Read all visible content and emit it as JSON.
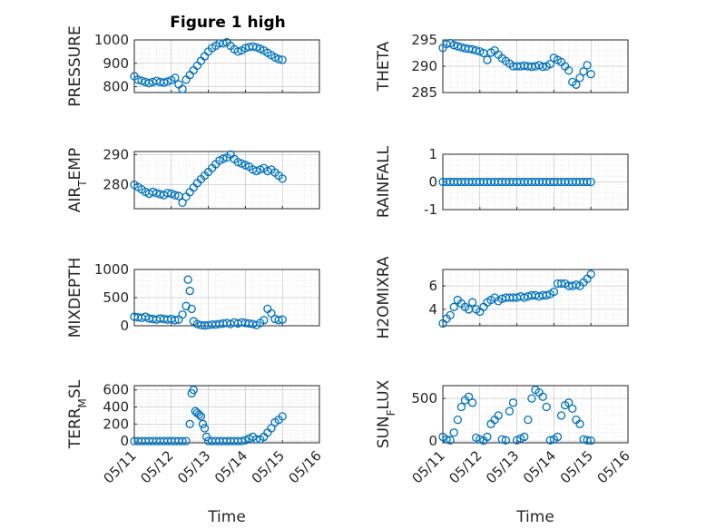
{
  "figure": {
    "title": "Figure 1 high"
  },
  "colors": {
    "marker": "#0072BD",
    "axis": "#262626",
    "background": "#ffffff"
  },
  "chart_data": [
    {
      "type": "scatter",
      "title": "Figure 1 high",
      "ylabel": "PRESSURE",
      "xlabel": "",
      "ylim": [
        775,
        1000
      ],
      "yticks": [
        800,
        900,
        1000
      ],
      "xlim": [
        0,
        5
      ],
      "xticks": [
        0,
        1,
        2,
        3,
        4,
        5
      ],
      "xticklabels": [
        "",
        "",
        "",
        "",
        "",
        ""
      ],
      "grid": true,
      "minor_grid": true,
      "marker": "circle",
      "x": [
        0,
        0.1,
        0.2,
        0.3,
        0.4,
        0.5,
        0.6,
        0.7,
        0.8,
        0.9,
        1.0,
        1.1,
        1.2,
        1.3,
        1.4,
        1.5,
        1.6,
        1.7,
        1.8,
        1.9,
        2.0,
        2.1,
        2.2,
        2.3,
        2.4,
        2.5,
        2.6,
        2.7,
        2.8,
        2.9,
        3.0,
        3.1,
        3.2,
        3.3,
        3.4,
        3.5,
        3.6,
        3.7,
        3.8,
        3.9,
        4.0
      ],
      "y": [
        845,
        830,
        825,
        820,
        815,
        820,
        825,
        820,
        818,
        822,
        828,
        838,
        810,
        790,
        830,
        850,
        870,
        890,
        910,
        930,
        950,
        965,
        975,
        985,
        985,
        990,
        975,
        960,
        950,
        955,
        965,
        970,
        972,
        968,
        962,
        955,
        945,
        935,
        925,
        918,
        915
      ]
    },
    {
      "type": "scatter",
      "ylabel": "THETA",
      "xlabel": "",
      "ylim": [
        285,
        295
      ],
      "yticks": [
        285,
        290,
        295
      ],
      "xlim": [
        0,
        5
      ],
      "xticks": [
        0,
        1,
        2,
        3,
        4,
        5
      ],
      "xticklabels": [
        "",
        "",
        "",
        "",
        "",
        ""
      ],
      "grid": true,
      "minor_grid": true,
      "marker": "circle",
      "x": [
        0,
        0.1,
        0.2,
        0.3,
        0.4,
        0.5,
        0.6,
        0.7,
        0.8,
        0.9,
        1.0,
        1.1,
        1.2,
        1.3,
        1.4,
        1.5,
        1.6,
        1.7,
        1.8,
        1.9,
        2.0,
        2.1,
        2.2,
        2.3,
        2.4,
        2.5,
        2.6,
        2.7,
        2.8,
        2.9,
        3.0,
        3.1,
        3.2,
        3.3,
        3.4,
        3.5,
        3.6,
        3.7,
        3.8,
        3.9,
        4.0
      ],
      "y": [
        293.5,
        294.2,
        294.4,
        294.0,
        293.8,
        293.6,
        293.4,
        293.3,
        293.2,
        293.0,
        292.8,
        292.5,
        291.2,
        292.6,
        293.0,
        292.2,
        291.5,
        291.0,
        290.5,
        290.0,
        290.0,
        290.0,
        290.1,
        290.0,
        289.9,
        290.0,
        290.2,
        289.9,
        290.0,
        290.4,
        291.6,
        291.2,
        290.8,
        290.0,
        289.2,
        287.0,
        286.5,
        287.8,
        289.0,
        290.2,
        288.5
      ]
    },
    {
      "type": "scatter",
      "ylabel": "AIR_TEMP",
      "xlabel": "",
      "ylim": [
        272,
        291
      ],
      "yticks": [
        280,
        290
      ],
      "xlim": [
        0,
        5
      ],
      "xticks": [
        0,
        1,
        2,
        3,
        4,
        5
      ],
      "xticklabels": [
        "",
        "",
        "",
        "",
        "",
        ""
      ],
      "grid": true,
      "minor_grid": true,
      "marker": "circle",
      "x": [
        0,
        0.1,
        0.2,
        0.3,
        0.4,
        0.5,
        0.6,
        0.7,
        0.8,
        0.9,
        1.0,
        1.1,
        1.2,
        1.3,
        1.4,
        1.5,
        1.6,
        1.7,
        1.8,
        1.9,
        2.0,
        2.1,
        2.2,
        2.3,
        2.4,
        2.5,
        2.6,
        2.7,
        2.8,
        2.9,
        3.0,
        3.1,
        3.2,
        3.3,
        3.4,
        3.5,
        3.6,
        3.7,
        3.8,
        3.9,
        4.0
      ],
      "y": [
        280.0,
        279.2,
        278.4,
        277.6,
        277.0,
        277.6,
        277.2,
        276.8,
        276.5,
        277.2,
        277.0,
        276.5,
        276.2,
        274.0,
        276.0,
        277.5,
        279.0,
        280.5,
        281.8,
        283.0,
        284.2,
        285.5,
        286.8,
        288.0,
        288.6,
        289.0,
        290.0,
        288.5,
        287.5,
        287.0,
        286.5,
        286.0,
        285.0,
        284.5,
        285.0,
        285.5,
        284.5,
        285.0,
        284.0,
        283.0,
        282.0
      ]
    },
    {
      "type": "scatter",
      "ylabel": "RAINFALL",
      "xlabel": "",
      "ylim": [
        -1,
        1
      ],
      "yticks": [
        -1,
        0,
        1
      ],
      "xlim": [
        0,
        5
      ],
      "xticks": [
        0,
        1,
        2,
        3,
        4,
        5
      ],
      "xticklabels": [
        "",
        "",
        "",
        "",
        "",
        ""
      ],
      "grid": true,
      "minor_grid": true,
      "marker": "circle",
      "x": [
        0,
        0.1,
        0.2,
        0.3,
        0.4,
        0.5,
        0.6,
        0.7,
        0.8,
        0.9,
        1.0,
        1.1,
        1.2,
        1.3,
        1.4,
        1.5,
        1.6,
        1.7,
        1.8,
        1.9,
        2.0,
        2.1,
        2.2,
        2.3,
        2.4,
        2.5,
        2.6,
        2.7,
        2.8,
        2.9,
        3.0,
        3.1,
        3.2,
        3.3,
        3.4,
        3.5,
        3.6,
        3.7,
        3.8,
        3.9,
        4.0
      ],
      "y": [
        0,
        0,
        0,
        0,
        0,
        0,
        0,
        0,
        0,
        0,
        0,
        0,
        0,
        0,
        0,
        0,
        0,
        0,
        0,
        0,
        0,
        0,
        0,
        0,
        0,
        0,
        0,
        0,
        0,
        0,
        0,
        0,
        0,
        0,
        0,
        0,
        0,
        0,
        0,
        0,
        0
      ]
    },
    {
      "type": "scatter",
      "ylabel": "MIXDEPTH",
      "xlabel": "",
      "ylim": [
        0,
        1000
      ],
      "yticks": [
        0,
        500,
        1000
      ],
      "xlim": [
        0,
        5
      ],
      "xticks": [
        0,
        1,
        2,
        3,
        4,
        5
      ],
      "xticklabels": [
        "",
        "",
        "",
        "",
        "",
        ""
      ],
      "grid": true,
      "minor_grid": true,
      "marker": "circle",
      "x": [
        0,
        0.1,
        0.2,
        0.3,
        0.4,
        0.5,
        0.6,
        0.7,
        0.8,
        0.9,
        1.0,
        1.1,
        1.2,
        1.3,
        1.4,
        1.45,
        1.5,
        1.55,
        1.6,
        1.7,
        1.8,
        1.9,
        2.0,
        2.1,
        2.2,
        2.3,
        2.4,
        2.5,
        2.6,
        2.7,
        2.8,
        2.9,
        3.0,
        3.1,
        3.2,
        3.3,
        3.4,
        3.5,
        3.6,
        3.7,
        3.8,
        3.9,
        4.0
      ],
      "y": [
        160,
        150,
        140,
        160,
        130,
        120,
        110,
        130,
        120,
        110,
        120,
        100,
        110,
        200,
        350,
        820,
        620,
        300,
        80,
        30,
        10,
        5,
        10,
        20,
        20,
        30,
        40,
        50,
        30,
        60,
        40,
        60,
        50,
        40,
        30,
        10,
        50,
        100,
        300,
        220,
        120,
        100,
        110
      ]
    },
    {
      "type": "scatter",
      "ylabel": "H2OMIXRA",
      "xlabel": "",
      "ylim": [
        2.6,
        7.4
      ],
      "yticks": [
        4,
        6
      ],
      "xlim": [
        0,
        5
      ],
      "xticks": [
        0,
        1,
        2,
        3,
        4,
        5
      ],
      "xticklabels": [
        "",
        "",
        "",
        "",
        "",
        ""
      ],
      "grid": true,
      "minor_grid": true,
      "marker": "circle",
      "x": [
        0,
        0.1,
        0.2,
        0.3,
        0.4,
        0.5,
        0.6,
        0.7,
        0.8,
        0.9,
        1.0,
        1.1,
        1.2,
        1.3,
        1.4,
        1.5,
        1.6,
        1.7,
        1.8,
        1.9,
        2.0,
        2.1,
        2.2,
        2.3,
        2.4,
        2.5,
        2.6,
        2.7,
        2.8,
        2.9,
        3.0,
        3.1,
        3.2,
        3.3,
        3.4,
        3.5,
        3.6,
        3.7,
        3.8,
        3.9,
        4.0
      ],
      "y": [
        2.8,
        3.2,
        3.5,
        4.2,
        4.8,
        4.5,
        4.2,
        4.0,
        4.6,
        4.0,
        3.8,
        4.2,
        4.6,
        4.8,
        5.0,
        4.7,
        4.9,
        5.0,
        5.0,
        5.0,
        5.0,
        5.1,
        5.0,
        5.1,
        5.2,
        5.2,
        5.1,
        5.2,
        5.2,
        5.3,
        5.5,
        6.2,
        6.2,
        6.2,
        6.0,
        6.0,
        6.1,
        6.0,
        6.3,
        6.6,
        7.0
      ]
    },
    {
      "type": "scatter",
      "ylabel": "TERR_MSL",
      "xlabel": "Time",
      "ylim": [
        -20,
        650
      ],
      "yticks": [
        0,
        200,
        400,
        600
      ],
      "xlim": [
        0,
        5
      ],
      "xticks": [
        0,
        1,
        2,
        3,
        4,
        5
      ],
      "xticklabels": [
        "05/11",
        "05/12",
        "05/13",
        "05/14",
        "05/15",
        "05/16"
      ],
      "grid": true,
      "minor_grid": true,
      "marker": "circle",
      "x": [
        0,
        0.1,
        0.2,
        0.3,
        0.4,
        0.5,
        0.6,
        0.7,
        0.8,
        0.9,
        1.0,
        1.1,
        1.2,
        1.3,
        1.4,
        1.5,
        1.55,
        1.6,
        1.65,
        1.7,
        1.75,
        1.8,
        1.85,
        1.9,
        1.95,
        2.0,
        2.1,
        2.2,
        2.3,
        2.4,
        2.5,
        2.6,
        2.7,
        2.8,
        2.9,
        3.0,
        3.1,
        3.2,
        3.3,
        3.4,
        3.5,
        3.6,
        3.7,
        3.8,
        3.9,
        4.0
      ],
      "y": [
        0,
        0,
        0,
        0,
        0,
        0,
        0,
        0,
        0,
        0,
        0,
        0,
        0,
        0,
        0,
        200,
        560,
        600,
        350,
        330,
        310,
        290,
        200,
        150,
        50,
        0,
        0,
        0,
        0,
        0,
        0,
        0,
        0,
        0,
        0,
        10,
        30,
        50,
        20,
        20,
        50,
        100,
        150,
        220,
        250,
        290
      ]
    },
    {
      "type": "scatter",
      "ylabel": "SUN_FLUX",
      "xlabel": "Time",
      "ylim": [
        -20,
        650
      ],
      "yticks": [
        0,
        500
      ],
      "xlim": [
        0,
        5
      ],
      "xticks": [
        0,
        1,
        2,
        3,
        4,
        5
      ],
      "xticklabels": [
        "05/11",
        "05/12",
        "05/13",
        "05/14",
        "05/15",
        "05/16"
      ],
      "grid": true,
      "minor_grid": true,
      "marker": "circle",
      "x": [
        0,
        0.1,
        0.2,
        0.3,
        0.4,
        0.5,
        0.6,
        0.7,
        0.8,
        0.9,
        1.0,
        1.1,
        1.2,
        1.3,
        1.4,
        1.5,
        1.6,
        1.7,
        1.8,
        1.9,
        2.0,
        2.1,
        2.2,
        2.3,
        2.4,
        2.5,
        2.6,
        2.7,
        2.8,
        2.9,
        3.0,
        3.1,
        3.2,
        3.3,
        3.4,
        3.5,
        3.6,
        3.7,
        3.8,
        3.9,
        4.0
      ],
      "y": [
        50,
        20,
        10,
        100,
        250,
        400,
        480,
        520,
        450,
        40,
        20,
        5,
        50,
        200,
        250,
        300,
        20,
        10,
        350,
        450,
        10,
        30,
        50,
        250,
        500,
        600,
        570,
        520,
        400,
        10,
        20,
        50,
        300,
        420,
        450,
        380,
        250,
        200,
        20,
        10,
        5
      ]
    }
  ]
}
